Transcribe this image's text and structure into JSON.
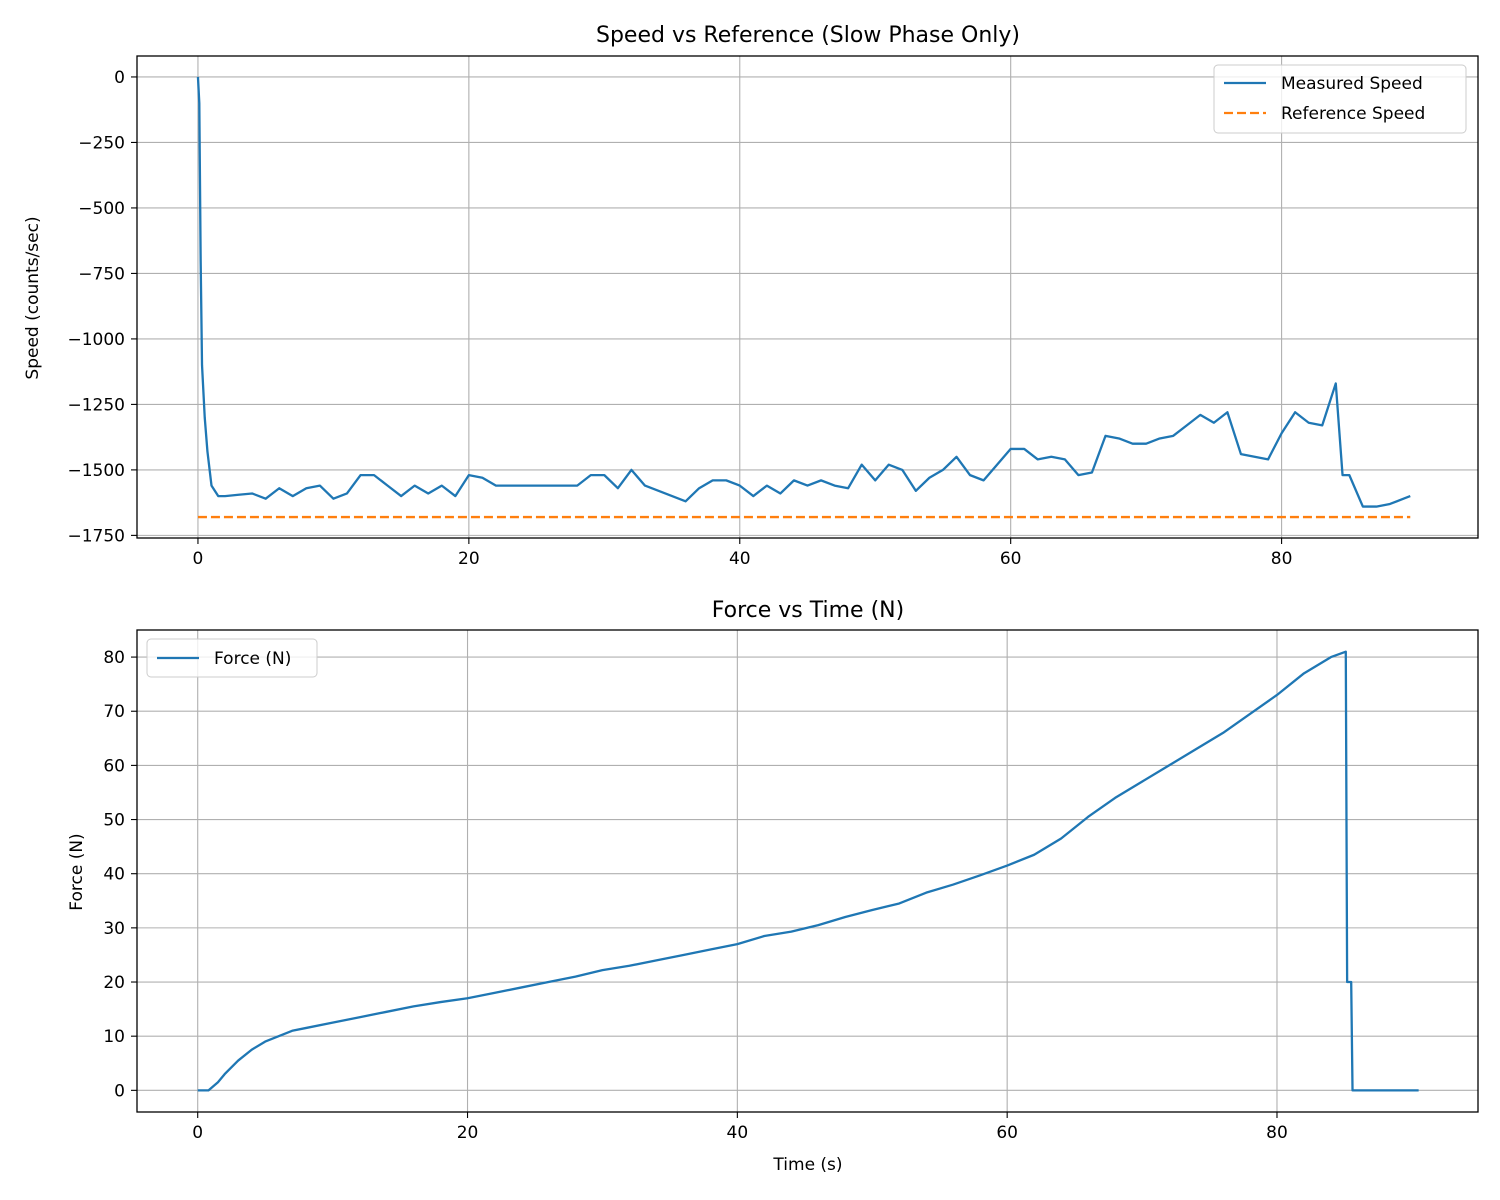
{
  "colors": {
    "measured": "#1f77b4",
    "reference": "#ff7f0e",
    "grid": "#b0b0b0",
    "axis": "#000000",
    "legend_border": "#cccccc"
  },
  "chart_data": [
    {
      "type": "line",
      "title": "Speed vs Reference (Slow Phase Only)",
      "xlabel": "",
      "ylabel": "Speed (counts/sec)",
      "xlim": [
        -4.5,
        94.5
      ],
      "ylim": [
        -1760,
        80
      ],
      "xticks": [
        0,
        20,
        40,
        60,
        80
      ],
      "yticks": [
        0,
        -250,
        -500,
        -750,
        -1000,
        -1250,
        -1500,
        -1750
      ],
      "xtick_labels": [
        "0",
        "20",
        "40",
        "60",
        "80"
      ],
      "ytick_labels": [
        "0",
        "−250",
        "−500",
        "−750",
        "−1000",
        "−1250",
        "−1500",
        "−1750"
      ],
      "grid": true,
      "legend_position": "upper-right",
      "series": [
        {
          "name": "Measured Speed",
          "style": "solid",
          "x": [
            0,
            0.1,
            0.2,
            0.3,
            0.5,
            0.7,
            1,
            1.5,
            2,
            3,
            4,
            5,
            6,
            7,
            8,
            9,
            10,
            11,
            12,
            13,
            14,
            15,
            16,
            17,
            18,
            19,
            20,
            21,
            22,
            24,
            26,
            28,
            29,
            30,
            31,
            32,
            33,
            34,
            35,
            36,
            37,
            38,
            39,
            40,
            41,
            42,
            43,
            44,
            45,
            46,
            47,
            48,
            49,
            50,
            51,
            52,
            53,
            54,
            55,
            56,
            57,
            58,
            59,
            60,
            61,
            62,
            63,
            64,
            65,
            66,
            67,
            68,
            69,
            70,
            71,
            72,
            73,
            74,
            75,
            76,
            77,
            78,
            79,
            80,
            81,
            82,
            83,
            84,
            84.5,
            85,
            86,
            87,
            88,
            89,
            89.5
          ],
          "y": [
            0,
            -100,
            -700,
            -1100,
            -1300,
            -1430,
            -1560,
            -1600,
            -1600,
            -1595,
            -1590,
            -1610,
            -1570,
            -1600,
            -1570,
            -1560,
            -1610,
            -1590,
            -1520,
            -1520,
            -1560,
            -1600,
            -1560,
            -1590,
            -1560,
            -1600,
            -1520,
            -1530,
            -1560,
            -1560,
            -1560,
            -1560,
            -1520,
            -1520,
            -1570,
            -1500,
            -1560,
            -1580,
            -1600,
            -1620,
            -1570,
            -1540,
            -1540,
            -1560,
            -1600,
            -1560,
            -1590,
            -1540,
            -1560,
            -1540,
            -1560,
            -1570,
            -1480,
            -1540,
            -1480,
            -1500,
            -1580,
            -1530,
            -1500,
            -1450,
            -1520,
            -1540,
            -1480,
            -1420,
            -1420,
            -1460,
            -1450,
            -1460,
            -1520,
            -1510,
            -1370,
            -1380,
            -1400,
            -1400,
            -1380,
            -1370,
            -1330,
            -1290,
            -1320,
            -1280,
            -1440,
            -1450,
            -1460,
            -1360,
            -1280,
            -1320,
            -1330,
            -1170,
            -1520,
            -1520,
            -1640,
            -1640,
            -1630,
            -1610,
            -1600
          ]
        },
        {
          "name": "Reference Speed",
          "style": "dashed",
          "x": [
            0,
            89.5
          ],
          "y": [
            -1680,
            -1680
          ]
        }
      ]
    },
    {
      "type": "line",
      "title": "Force vs Time (N)",
      "xlabel": "Time (s)",
      "ylabel": "Force (N)",
      "xlim": [
        -4.5,
        94.9
      ],
      "ylim": [
        -4,
        85
      ],
      "xticks": [
        0,
        20,
        40,
        60,
        80
      ],
      "yticks": [
        0,
        10,
        20,
        30,
        40,
        50,
        60,
        70,
        80
      ],
      "xtick_labels": [
        "0",
        "20",
        "40",
        "60",
        "80"
      ],
      "ytick_labels": [
        "0",
        "10",
        "20",
        "30",
        "40",
        "50",
        "60",
        "70",
        "80"
      ],
      "grid": true,
      "legend_position": "upper-left",
      "series": [
        {
          "name": "Force (N)",
          "style": "solid",
          "x": [
            0,
            0.8,
            1.5,
            2,
            3,
            4,
            5,
            6,
            7,
            8,
            10,
            12,
            14,
            16,
            18,
            20,
            22,
            24,
            26,
            28,
            30,
            32,
            34,
            36,
            38,
            40,
            42,
            44,
            46,
            48,
            50,
            52,
            54,
            56,
            58,
            60,
            62,
            64,
            66,
            68,
            70,
            72,
            74,
            76,
            78,
            80,
            82,
            84,
            85.1,
            85.2,
            85.5,
            85.6,
            90.5
          ],
          "y": [
            0,
            0,
            1.5,
            3,
            5.5,
            7.5,
            9,
            10,
            11,
            11.5,
            12.5,
            13.5,
            14.5,
            15.5,
            16.3,
            17,
            18,
            19,
            20,
            21,
            22.2,
            23,
            24,
            25,
            26,
            27,
            28.5,
            29.3,
            30.5,
            32,
            33.3,
            34.5,
            36.5,
            38,
            39.7,
            41.5,
            43.5,
            46.5,
            50.5,
            54,
            57,
            60,
            63,
            66,
            69.5,
            73,
            77,
            80,
            81,
            20,
            20,
            0,
            0
          ]
        }
      ]
    }
  ]
}
